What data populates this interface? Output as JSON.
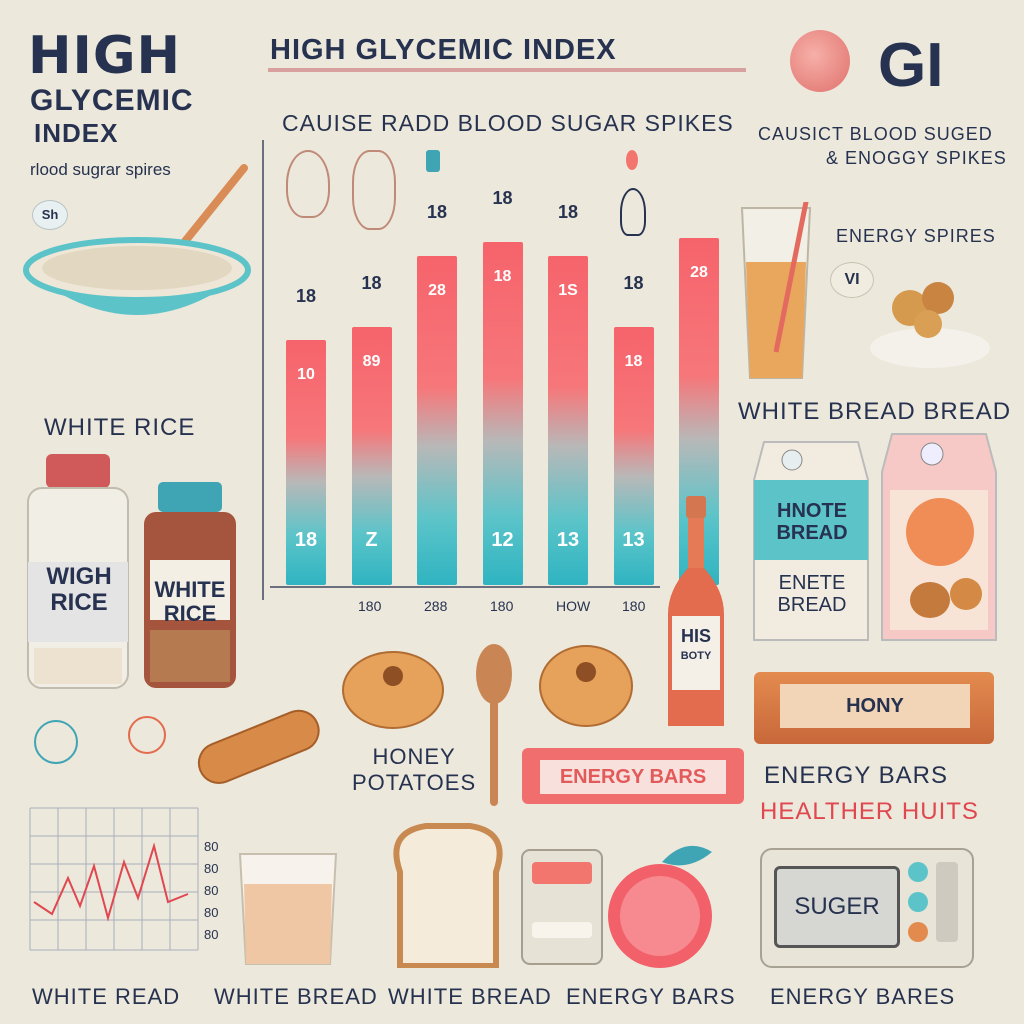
{
  "header": {
    "main_title_line1": "HIGH",
    "main_title_line2": "GLYCEMIC",
    "main_title_line3": "INDEX",
    "main_subtitle": "rlood sugrar spires",
    "top_title": "HIGH GLYCEMIC INDEX",
    "top_subtitle": "CAUISE RADD BLOOD SUGAR SPIKES",
    "gi_badge": "GI"
  },
  "right_panel": {
    "line1": "CAUSICT BLOOD SUGED",
    "line2": "& ENOGGY SPIKES",
    "line3": "ENERGY SPIRES",
    "vi_badge": "VI",
    "white_bread_label": "WHITE BREAD BREAD"
  },
  "left_panel": {
    "bowl_badge": "Sh",
    "white_rice_label": "WHITE RICE",
    "jar1_label_line1": "WIGH",
    "jar1_label_line2": "RICE",
    "jar2_label_line1": "WHITE",
    "jar2_label_line2": "RICE"
  },
  "chart_data": {
    "type": "bar",
    "top_labels": [
      "18",
      "18",
      "18",
      "18",
      "18",
      "18",
      ""
    ],
    "values_in_bar_top": [
      "10",
      "89",
      "28",
      "18",
      "1S",
      "18",
      "28"
    ],
    "values_in_bar_bottom": [
      "18",
      "Z",
      "",
      "12",
      "13",
      "13",
      ""
    ],
    "value_estimates": [
      55,
      58,
      74,
      77,
      74,
      58,
      78
    ],
    "x_ticks": [
      "180",
      "288",
      "180",
      "HOW",
      "180"
    ],
    "ylim": [
      0,
      100
    ]
  },
  "middle": {
    "honey_potatoes_line1": "HONEY",
    "honey_potatoes_line2": "POTATOES",
    "energy_bar_wrapper": "ENERGY BARS",
    "bottle_label_line1": "HIS",
    "bottle_label_line2": "BOTY"
  },
  "right_products": {
    "carton1_line1": "HNOTE",
    "carton1_line2": "BREAD",
    "carton1_line3": "ENETE",
    "carton1_line4": "BREAD",
    "bar_wrapper": "HONY",
    "energy_bars_label": "ENERGY BARS",
    "healther_label": "HEALTHER HUITS",
    "scale_display": "SUGER"
  },
  "bottom_captions": {
    "c1": "WHITE READ",
    "c2": "WHITE BREAD",
    "c3": "WHITE BREAD",
    "c4": "ENERGY BARS",
    "c5": "ENERGY BARES"
  },
  "mini_chart": {
    "yticks": [
      "80",
      "80",
      "80",
      "80",
      "80"
    ]
  },
  "colors": {
    "navy": "#26324f",
    "coral": "#f6636b",
    "teal": "#2fb4c1",
    "background": "#ece8dc"
  }
}
